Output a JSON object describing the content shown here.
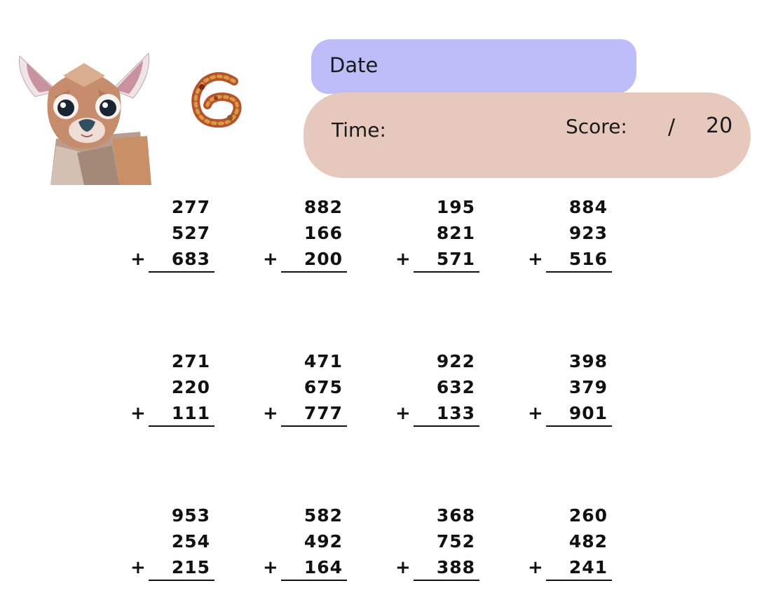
{
  "header": {
    "date_label": "Date",
    "time_label": "Time:",
    "score_label": "Score:",
    "score_separator": "/",
    "score_total": "20"
  },
  "colors": {
    "date_blob": "#bdbdf9",
    "time_blob": "#e7c8bd"
  },
  "illustrations": {
    "deer": "deer-illustration",
    "leaf_number": "autumn-leaf-number-6"
  },
  "problems": [
    {
      "a": "277",
      "b": "527",
      "c": "683",
      "op": "+"
    },
    {
      "a": "882",
      "b": "166",
      "c": "200",
      "op": "+"
    },
    {
      "a": "195",
      "b": "821",
      "c": "571",
      "op": "+"
    },
    {
      "a": "884",
      "b": "923",
      "c": "516",
      "op": "+"
    },
    {
      "a": "271",
      "b": "220",
      "c": "111",
      "op": "+"
    },
    {
      "a": "471",
      "b": "675",
      "c": "777",
      "op": "+"
    },
    {
      "a": "922",
      "b": "632",
      "c": "133",
      "op": "+"
    },
    {
      "a": "398",
      "b": "379",
      "c": "901",
      "op": "+"
    },
    {
      "a": "953",
      "b": "254",
      "c": "215",
      "op": "+"
    },
    {
      "a": "582",
      "b": "492",
      "c": "164",
      "op": "+"
    },
    {
      "a": "368",
      "b": "752",
      "c": "388",
      "op": "+"
    },
    {
      "a": "260",
      "b": "482",
      "c": "241",
      "op": "+"
    }
  ]
}
